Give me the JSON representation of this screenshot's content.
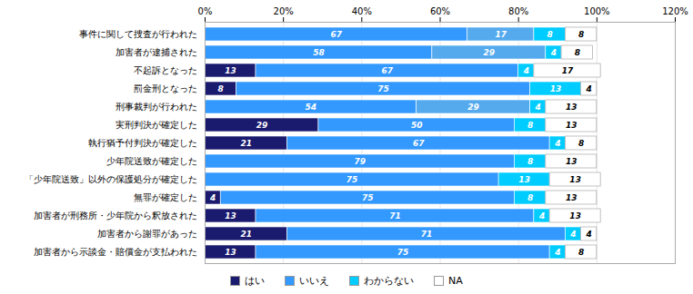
{
  "chart_data": {
    "type": "bar",
    "orientation": "horizontal",
    "stacked": true,
    "data_labels": true,
    "grid": true,
    "categories": [
      "事件に関して捜査が行われた",
      "加害者が逮捕された",
      "不起訴となった",
      "罰金刑となった",
      "刑事裁判が行われた",
      "実刑判決が確定した",
      "執行猶予付判決が確定した",
      "少年院送致が確定した",
      "「少年院送致」以外の保護処分が確定した",
      "無罪が確定した",
      "加害者が刑務所・少年院から釈放された",
      "加害者から謝罪があった",
      "加害者から示談金・賠償金が支払われた"
    ],
    "series": [
      {
        "name": "はい",
        "color": "#1a1a6e",
        "values": [
          0,
          0,
          13,
          8,
          0,
          29,
          21,
          0,
          0,
          4,
          13,
          21,
          13
        ]
      },
      {
        "name": "いいえ",
        "color": "#3399ff",
        "values": [
          67,
          58,
          67,
          75,
          54,
          50,
          67,
          79,
          75,
          75,
          71,
          71,
          75
        ]
      },
      {
        "color": "#55aaee",
        "values": [
          17,
          29,
          0,
          0,
          29,
          0,
          0,
          0,
          0,
          0,
          0,
          0,
          0
        ]
      },
      {
        "name": "わからない",
        "color": "#00ccff",
        "values": [
          8,
          4,
          4,
          13,
          4,
          8,
          4,
          8,
          13,
          8,
          4,
          4,
          4
        ]
      },
      {
        "name": "NA",
        "color": "#ffffff",
        "values": [
          8,
          8,
          17,
          4,
          13,
          13,
          8,
          13,
          13,
          13,
          13,
          4,
          8
        ]
      }
    ],
    "xlim": [
      0,
      120
    ],
    "xticks": [
      {
        "value": 0,
        "label": "0%"
      },
      {
        "value": 20,
        "label": "20%"
      },
      {
        "value": 40,
        "label": "40%"
      },
      {
        "value": 60,
        "label": "60%"
      },
      {
        "value": 80,
        "label": "80%"
      },
      {
        "value": 100,
        "label": "100%"
      },
      {
        "value": 120,
        "label": "120%"
      }
    ]
  }
}
